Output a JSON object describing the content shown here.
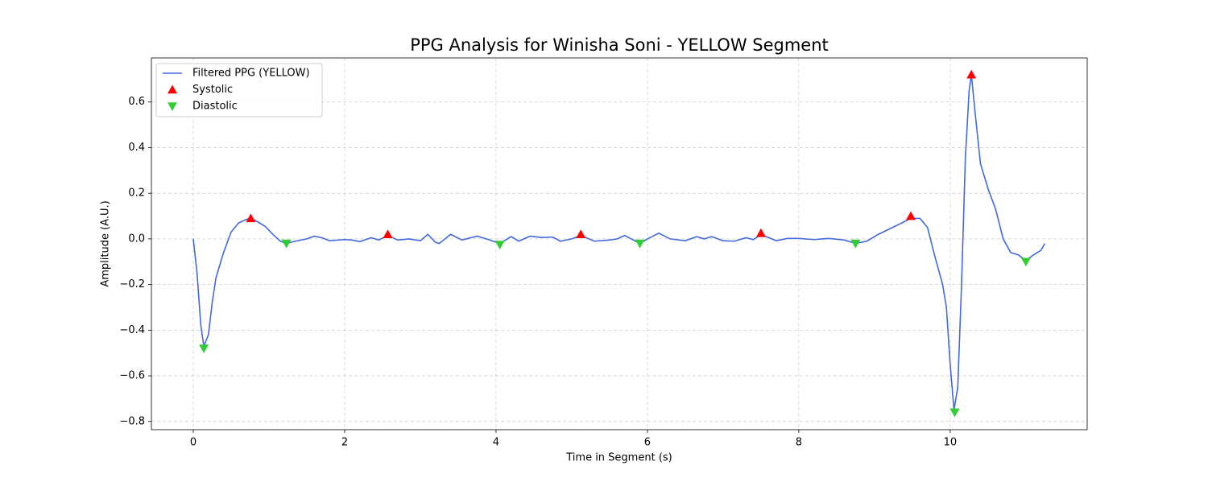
{
  "chart_data": {
    "type": "line",
    "title": "PPG Analysis for Winisha Soni - YELLOW Segment",
    "x_label": "Time in Segment (s)",
    "y_label": "Amplitude (A.U.)",
    "xlim": [
      -0.553,
      11.81
    ],
    "ylim": [
      -0.836,
      0.793
    ],
    "xticks": [
      0,
      2,
      4,
      6,
      8,
      10
    ],
    "yticks": [
      {
        "value": -0.8,
        "label": "−0.8"
      },
      {
        "value": -0.6,
        "label": "−0.6"
      },
      {
        "value": -0.4,
        "label": "−0.4"
      },
      {
        "value": -0.2,
        "label": "−0.2"
      },
      {
        "value": 0,
        "label": "0.0"
      },
      0.2,
      0.4,
      0.6
    ],
    "grid": true,
    "legend": "upper left",
    "series": [
      {
        "name": "Filtered PPG (YELLOW)",
        "color": "#4169e1",
        "marker": "line",
        "x": [
          0,
          0.05,
          0.1,
          0.14,
          0.2,
          0.25,
          0.3,
          0.4,
          0.5,
          0.6,
          0.7,
          0.76,
          0.85,
          0.95,
          1.05,
          1.15,
          1.23,
          1.35,
          1.5,
          1.6,
          1.7,
          1.8,
          2.0,
          2.1,
          2.2,
          2.35,
          2.45,
          2.57,
          2.7,
          2.85,
          3.0,
          3.1,
          3.2,
          3.25,
          3.4,
          3.55,
          3.75,
          3.9,
          4.05,
          4.2,
          4.3,
          4.45,
          4.6,
          4.75,
          4.85,
          5.0,
          5.12,
          5.3,
          5.5,
          5.6,
          5.7,
          5.9,
          6.0,
          6.15,
          6.3,
          6.5,
          6.65,
          6.75,
          6.85,
          7.0,
          7.15,
          7.3,
          7.4,
          7.5,
          7.7,
          7.85,
          8.0,
          8.2,
          8.4,
          8.6,
          8.75,
          8.9,
          9.05,
          9.3,
          9.48,
          9.6,
          9.7,
          9.8,
          9.9,
          9.95,
          10.0,
          10.05,
          10.1,
          10.15,
          10.2,
          10.25,
          10.28,
          10.33,
          10.4,
          10.5,
          10.6,
          10.7,
          10.8,
          10.9,
          11.0,
          11.1,
          11.2,
          11.25
        ],
        "values": [
          0,
          -0.15,
          -0.38,
          -0.47,
          -0.42,
          -0.28,
          -0.17,
          -0.06,
          0.03,
          0.07,
          0.085,
          0.09,
          0.075,
          0.055,
          0.02,
          -0.01,
          -0.02,
          -0.01,
          0,
          0.012,
          0.005,
          -0.008,
          -0.003,
          -0.005,
          -0.012,
          0.005,
          -0.005,
          0.015,
          -0.005,
          0,
          -0.008,
          0.02,
          -0.015,
          -0.02,
          0.02,
          -0.005,
          0.012,
          -0.003,
          -0.02,
          0.01,
          -0.01,
          0.012,
          0.006,
          0.008,
          -0.01,
          0,
          0.015,
          -0.01,
          -0.005,
          0,
          0.015,
          -0.02,
          0,
          0.025,
          0,
          -0.008,
          0.01,
          0,
          0.01,
          -0.008,
          -0.01,
          0.005,
          -0.003,
          0.02,
          -0.008,
          0.002,
          0.002,
          -0.003,
          0.002,
          -0.005,
          -0.02,
          -0.01,
          0.02,
          0.06,
          0.09,
          0.09,
          0.05,
          -0.08,
          -0.2,
          -0.3,
          -0.55,
          -0.75,
          -0.65,
          -0.2,
          0.35,
          0.65,
          0.72,
          0.55,
          0.33,
          0.22,
          0.13,
          0,
          -0.06,
          -0.07,
          -0.095,
          -0.07,
          -0.05,
          -0.02
        ]
      },
      {
        "name": "Systolic",
        "color": "#ff0000",
        "marker": "triangle-up",
        "x": [
          0.76,
          2.57,
          5.12,
          7.5,
          9.48,
          10.28
        ],
        "values": [
          0.09,
          0.02,
          0.02,
          0.025,
          0.1,
          0.72
        ]
      },
      {
        "name": "Diastolic",
        "color": "#32cd32",
        "marker": "triangle-down",
        "x": [
          0.14,
          1.23,
          4.05,
          5.9,
          8.75,
          10.06,
          11.0
        ],
        "values": [
          -0.48,
          -0.02,
          -0.025,
          -0.02,
          -0.02,
          -0.76,
          -0.1
        ]
      }
    ]
  }
}
